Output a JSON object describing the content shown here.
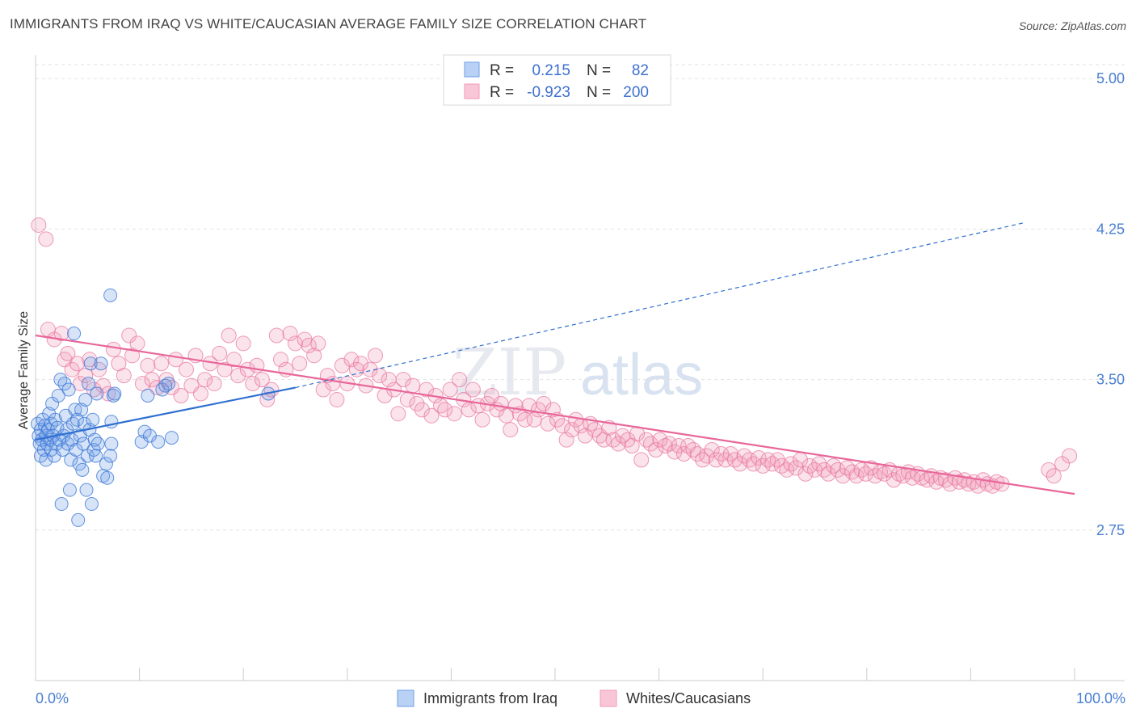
{
  "header": {
    "title": "IMMIGRANTS FROM IRAQ VS WHITE/CAUCASIAN AVERAGE FAMILY SIZE CORRELATION CHART",
    "source": "Source: ZipAtlas.com"
  },
  "watermark": {
    "zip": "ZIP",
    "atlas": "atlas"
  },
  "legend_box": {
    "rows": [
      {
        "r_label": "R =",
        "r_value": "0.215",
        "n_label": "N =",
        "n_value": "82"
      },
      {
        "r_label": "R =",
        "r_value": "-0.923",
        "n_label": "N =",
        "n_value": "200"
      }
    ]
  },
  "chart_data": {
    "type": "scatter",
    "title": "IMMIGRANTS FROM IRAQ VS WHITE/CAUCASIAN AVERAGE FAMILY SIZE CORRELATION CHART",
    "xlabel": "",
    "ylabel": "Average Family Size",
    "xlim": [
      0,
      100
    ],
    "ylim": [
      2.0,
      5.15
    ],
    "x_tick_labels": [
      "0.0%",
      "100.0%"
    ],
    "y_ticks": [
      2.75,
      3.5,
      4.25,
      5.0
    ],
    "y_tick_labels": [
      "2.75",
      "3.50",
      "4.25",
      "5.00"
    ],
    "grid": true,
    "legend_position": "bottom",
    "colors": {
      "iraq": "#6f9fe6",
      "white": "#f19bb7",
      "iraq_line": "#2f6fd0",
      "white_line": "#e8679a"
    },
    "series": [
      {
        "name": "Immigrants from Iraq",
        "r": 0.215,
        "n": 82,
        "trend": {
          "x": [
            0,
            25
          ],
          "y": [
            3.2,
            3.46
          ]
        },
        "trend_extension": {
          "x": [
            25,
            95
          ],
          "y": [
            3.46,
            4.28
          ]
        },
        "points": [
          [
            0.2,
            3.28
          ],
          [
            0.3,
            3.22
          ],
          [
            0.4,
            3.18
          ],
          [
            0.5,
            3.25
          ],
          [
            0.5,
            3.12
          ],
          [
            0.6,
            3.2
          ],
          [
            0.7,
            3.3
          ],
          [
            0.8,
            3.15
          ],
          [
            0.9,
            3.27
          ],
          [
            1.0,
            3.1
          ],
          [
            1.0,
            3.22
          ],
          [
            1.1,
            3.18
          ],
          [
            1.2,
            3.25
          ],
          [
            1.3,
            3.33
          ],
          [
            1.4,
            3.2
          ],
          [
            1.5,
            3.28
          ],
          [
            1.5,
            3.15
          ],
          [
            1.6,
            3.38
          ],
          [
            1.7,
            3.22
          ],
          [
            1.8,
            3.12
          ],
          [
            1.9,
            3.3
          ],
          [
            2.0,
            3.18
          ],
          [
            2.1,
            3.26
          ],
          [
            2.2,
            3.42
          ],
          [
            2.3,
            3.2
          ],
          [
            2.4,
            3.5
          ],
          [
            2.5,
            2.88
          ],
          [
            2.6,
            3.15
          ],
          [
            2.7,
            3.22
          ],
          [
            2.8,
            3.48
          ],
          [
            2.9,
            3.32
          ],
          [
            3.0,
            3.25
          ],
          [
            3.1,
            3.18
          ],
          [
            3.2,
            3.45
          ],
          [
            3.3,
            2.95
          ],
          [
            3.4,
            3.1
          ],
          [
            3.5,
            3.2
          ],
          [
            3.6,
            3.28
          ],
          [
            3.7,
            3.73
          ],
          [
            3.8,
            3.35
          ],
          [
            3.9,
            3.15
          ],
          [
            4.0,
            3.3
          ],
          [
            4.1,
            2.8
          ],
          [
            4.2,
            3.08
          ],
          [
            4.3,
            3.22
          ],
          [
            4.4,
            3.35
          ],
          [
            4.5,
            3.05
          ],
          [
            4.6,
            3.18
          ],
          [
            4.7,
            3.28
          ],
          [
            4.8,
            3.4
          ],
          [
            4.9,
            2.95
          ],
          [
            5.0,
            3.12
          ],
          [
            5.1,
            3.48
          ],
          [
            5.2,
            3.25
          ],
          [
            5.3,
            3.58
          ],
          [
            5.4,
            2.88
          ],
          [
            5.5,
            3.3
          ],
          [
            5.6,
            3.15
          ],
          [
            5.7,
            3.2
          ],
          [
            5.8,
            3.12
          ],
          [
            5.9,
            3.43
          ],
          [
            6.0,
            3.18
          ],
          [
            6.3,
            3.58
          ],
          [
            6.5,
            3.02
          ],
          [
            6.8,
            3.08
          ],
          [
            6.9,
            3.01
          ],
          [
            7.3,
            3.29
          ],
          [
            7.5,
            3.42
          ],
          [
            7.3,
            3.18
          ],
          [
            7.6,
            3.43
          ],
          [
            7.2,
            3.12
          ],
          [
            10.2,
            3.19
          ],
          [
            10.5,
            3.24
          ],
          [
            10.8,
            3.42
          ],
          [
            11.0,
            3.22
          ],
          [
            11.8,
            3.19
          ],
          [
            12.2,
            3.45
          ],
          [
            12.5,
            3.47
          ],
          [
            12.8,
            3.48
          ],
          [
            13.1,
            3.21
          ],
          [
            7.2,
            3.92
          ],
          [
            22.4,
            3.43
          ]
        ]
      },
      {
        "name": "Whites/Caucasians",
        "r": -0.923,
        "n": 200,
        "trend": {
          "x": [
            0,
            100
          ],
          "y": [
            3.72,
            2.93
          ]
        },
        "points": [
          [
            0.3,
            4.27
          ],
          [
            1.0,
            4.2
          ],
          [
            1.2,
            3.75
          ],
          [
            1.8,
            3.7
          ],
          [
            2.5,
            3.73
          ],
          [
            2.8,
            3.6
          ],
          [
            3.1,
            3.63
          ],
          [
            3.5,
            3.55
          ],
          [
            4.0,
            3.58
          ],
          [
            4.3,
            3.48
          ],
          [
            4.8,
            3.52
          ],
          [
            5.2,
            3.6
          ],
          [
            5.6,
            3.45
          ],
          [
            6.1,
            3.55
          ],
          [
            6.5,
            3.47
          ],
          [
            7.0,
            3.43
          ],
          [
            7.5,
            3.65
          ],
          [
            8.0,
            3.58
          ],
          [
            8.5,
            3.52
          ],
          [
            9.0,
            3.72
          ],
          [
            9.3,
            3.62
          ],
          [
            9.8,
            3.68
          ],
          [
            10.3,
            3.48
          ],
          [
            10.8,
            3.57
          ],
          [
            11.2,
            3.5
          ],
          [
            11.7,
            3.46
          ],
          [
            12.1,
            3.58
          ],
          [
            12.6,
            3.5
          ],
          [
            13.1,
            3.46
          ],
          [
            13.5,
            3.6
          ],
          [
            14.0,
            3.42
          ],
          [
            14.5,
            3.55
          ],
          [
            15.0,
            3.47
          ],
          [
            15.4,
            3.62
          ],
          [
            15.9,
            3.43
          ],
          [
            16.3,
            3.5
          ],
          [
            16.8,
            3.58
          ],
          [
            17.2,
            3.48
          ],
          [
            17.7,
            3.63
          ],
          [
            18.2,
            3.55
          ],
          [
            18.6,
            3.72
          ],
          [
            19.1,
            3.6
          ],
          [
            19.5,
            3.52
          ],
          [
            20.0,
            3.68
          ],
          [
            20.4,
            3.55
          ],
          [
            20.9,
            3.48
          ],
          [
            21.3,
            3.57
          ],
          [
            21.8,
            3.5
          ],
          [
            22.3,
            3.4
          ],
          [
            22.7,
            3.45
          ],
          [
            23.2,
            3.72
          ],
          [
            23.6,
            3.6
          ],
          [
            24.1,
            3.55
          ],
          [
            24.5,
            3.73
          ],
          [
            25.0,
            3.68
          ],
          [
            25.4,
            3.58
          ],
          [
            25.9,
            3.7
          ],
          [
            26.3,
            3.67
          ],
          [
            26.8,
            3.62
          ],
          [
            27.2,
            3.68
          ],
          [
            27.7,
            3.45
          ],
          [
            28.1,
            3.52
          ],
          [
            28.6,
            3.48
          ],
          [
            29.0,
            3.4
          ],
          [
            29.5,
            3.57
          ],
          [
            30.0,
            3.48
          ],
          [
            30.4,
            3.6
          ],
          [
            30.9,
            3.55
          ],
          [
            31.3,
            3.58
          ],
          [
            31.8,
            3.47
          ],
          [
            32.2,
            3.55
          ],
          [
            32.7,
            3.62
          ],
          [
            33.1,
            3.52
          ],
          [
            33.6,
            3.42
          ],
          [
            34.0,
            3.5
          ],
          [
            34.5,
            3.45
          ],
          [
            34.9,
            3.33
          ],
          [
            35.4,
            3.5
          ],
          [
            35.8,
            3.4
          ],
          [
            36.3,
            3.47
          ],
          [
            36.7,
            3.38
          ],
          [
            37.2,
            3.35
          ],
          [
            37.6,
            3.45
          ],
          [
            38.1,
            3.32
          ],
          [
            38.5,
            3.42
          ],
          [
            39.0,
            3.37
          ],
          [
            39.4,
            3.35
          ],
          [
            39.9,
            3.45
          ],
          [
            40.3,
            3.33
          ],
          [
            40.8,
            3.5
          ],
          [
            41.2,
            3.4
          ],
          [
            41.7,
            3.35
          ],
          [
            42.1,
            3.45
          ],
          [
            42.6,
            3.37
          ],
          [
            43.0,
            3.3
          ],
          [
            43.5,
            3.38
          ],
          [
            43.9,
            3.42
          ],
          [
            44.4,
            3.35
          ],
          [
            44.8,
            3.38
          ],
          [
            45.3,
            3.32
          ],
          [
            45.7,
            3.25
          ],
          [
            46.2,
            3.37
          ],
          [
            46.6,
            3.33
          ],
          [
            47.1,
            3.3
          ],
          [
            47.5,
            3.37
          ],
          [
            48.0,
            3.3
          ],
          [
            48.4,
            3.35
          ],
          [
            48.9,
            3.38
          ],
          [
            49.3,
            3.28
          ],
          [
            49.8,
            3.35
          ],
          [
            50.2,
            3.3
          ],
          [
            50.7,
            3.27
          ],
          [
            51.1,
            3.2
          ],
          [
            51.6,
            3.25
          ],
          [
            52.0,
            3.3
          ],
          [
            52.5,
            3.27
          ],
          [
            52.9,
            3.22
          ],
          [
            53.4,
            3.28
          ],
          [
            53.8,
            3.25
          ],
          [
            54.3,
            3.22
          ],
          [
            54.7,
            3.2
          ],
          [
            55.2,
            3.26
          ],
          [
            55.6,
            3.2
          ],
          [
            56.1,
            3.18
          ],
          [
            56.5,
            3.22
          ],
          [
            57.0,
            3.2
          ],
          [
            57.4,
            3.17
          ],
          [
            57.9,
            3.23
          ],
          [
            58.3,
            3.1
          ],
          [
            58.8,
            3.2
          ],
          [
            59.2,
            3.18
          ],
          [
            59.7,
            3.15
          ],
          [
            60.1,
            3.2
          ],
          [
            60.6,
            3.17
          ],
          [
            61.0,
            3.18
          ],
          [
            61.5,
            3.14
          ],
          [
            61.9,
            3.17
          ],
          [
            62.4,
            3.13
          ],
          [
            62.8,
            3.17
          ],
          [
            63.3,
            3.15
          ],
          [
            63.7,
            3.13
          ],
          [
            64.2,
            3.1
          ],
          [
            64.6,
            3.12
          ],
          [
            65.1,
            3.15
          ],
          [
            65.5,
            3.1
          ],
          [
            66.0,
            3.13
          ],
          [
            66.4,
            3.1
          ],
          [
            66.9,
            3.13
          ],
          [
            67.3,
            3.1
          ],
          [
            67.8,
            3.08
          ],
          [
            68.2,
            3.12
          ],
          [
            68.7,
            3.1
          ],
          [
            69.1,
            3.08
          ],
          [
            69.6,
            3.11
          ],
          [
            70.0,
            3.07
          ],
          [
            70.5,
            3.1
          ],
          [
            70.9,
            3.08
          ],
          [
            71.4,
            3.1
          ],
          [
            71.8,
            3.07
          ],
          [
            72.3,
            3.05
          ],
          [
            72.7,
            3.08
          ],
          [
            73.2,
            3.06
          ],
          [
            73.6,
            3.1
          ],
          [
            74.1,
            3.03
          ],
          [
            74.5,
            3.07
          ],
          [
            75.0,
            3.05
          ],
          [
            75.4,
            3.08
          ],
          [
            75.9,
            3.05
          ],
          [
            76.3,
            3.03
          ],
          [
            76.8,
            3.07
          ],
          [
            77.2,
            3.05
          ],
          [
            77.7,
            3.02
          ],
          [
            78.1,
            3.06
          ],
          [
            78.6,
            3.04
          ],
          [
            79.0,
            3.02
          ],
          [
            79.5,
            3.05
          ],
          [
            79.9,
            3.03
          ],
          [
            80.4,
            3.06
          ],
          [
            80.8,
            3.02
          ],
          [
            81.3,
            3.04
          ],
          [
            81.7,
            3.03
          ],
          [
            82.2,
            3.05
          ],
          [
            82.6,
            3.0
          ],
          [
            83.1,
            3.03
          ],
          [
            83.5,
            3.02
          ],
          [
            84.0,
            3.04
          ],
          [
            84.4,
            3.01
          ],
          [
            84.9,
            3.03
          ],
          [
            85.3,
            3.01
          ],
          [
            85.8,
            3.0
          ],
          [
            86.2,
            3.02
          ],
          [
            86.7,
            2.99
          ],
          [
            87.1,
            3.01
          ],
          [
            87.6,
            3.0
          ],
          [
            88.0,
            2.98
          ],
          [
            88.5,
            3.01
          ],
          [
            88.9,
            2.99
          ],
          [
            89.4,
            3.0
          ],
          [
            89.8,
            2.98
          ],
          [
            90.3,
            2.99
          ],
          [
            90.7,
            2.97
          ],
          [
            91.2,
            3.0
          ],
          [
            91.6,
            2.98
          ],
          [
            92.1,
            2.97
          ],
          [
            92.5,
            2.99
          ],
          [
            93.0,
            2.98
          ],
          [
            97.5,
            3.05
          ],
          [
            98.0,
            3.02
          ],
          [
            98.8,
            3.08
          ],
          [
            99.5,
            3.12
          ]
        ]
      }
    ]
  },
  "bottom_legend": {
    "items": [
      {
        "label": "Immigrants from Iraq"
      },
      {
        "label": "Whites/Caucasians"
      }
    ]
  }
}
